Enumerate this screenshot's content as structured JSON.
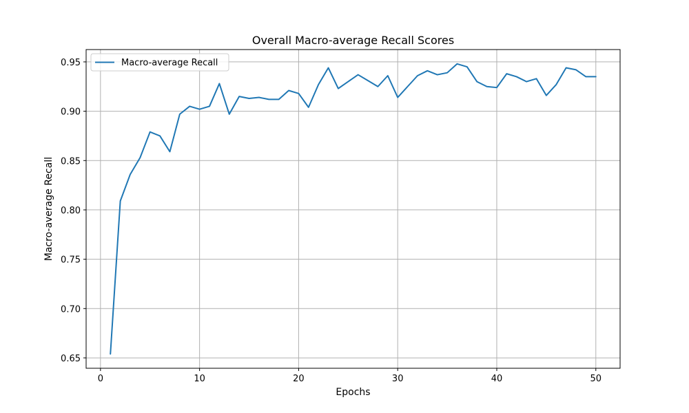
{
  "chart_data": {
    "type": "line",
    "title": "Overall Macro-average Recall Scores",
    "xlabel": "Epochs",
    "ylabel": "Macro-average Recall",
    "xlim": [
      -1.45,
      52.45
    ],
    "ylim": [
      0.6395,
      0.9625
    ],
    "xticks": [
      0,
      10,
      20,
      30,
      40,
      50
    ],
    "yticks": [
      0.65,
      0.7,
      0.75,
      0.8,
      0.85,
      0.9,
      0.95
    ],
    "ytick_format_decimals": 2,
    "grid": true,
    "legend_position": "upper-left",
    "series": [
      {
        "name": "Macro-average Recall",
        "color": "#1f77b4",
        "x": [
          1,
          2,
          3,
          4,
          5,
          6,
          7,
          8,
          9,
          10,
          11,
          12,
          13,
          14,
          15,
          16,
          17,
          18,
          19,
          20,
          21,
          22,
          23,
          24,
          25,
          26,
          27,
          28,
          29,
          30,
          31,
          32,
          33,
          34,
          35,
          36,
          37,
          38,
          39,
          40,
          41,
          42,
          43,
          44,
          45,
          46,
          47,
          48,
          49,
          50
        ],
        "y": [
          0.654,
          0.809,
          0.836,
          0.853,
          0.879,
          0.875,
          0.859,
          0.897,
          0.905,
          0.902,
          0.905,
          0.928,
          0.897,
          0.915,
          0.913,
          0.914,
          0.912,
          0.912,
          0.921,
          0.918,
          0.904,
          0.927,
          0.944,
          0.923,
          0.93,
          0.937,
          0.931,
          0.925,
          0.936,
          0.914,
          0.925,
          0.936,
          0.941,
          0.937,
          0.939,
          0.948,
          0.945,
          0.93,
          0.925,
          0.924,
          0.938,
          0.935,
          0.93,
          0.933,
          0.916,
          0.927,
          0.944,
          0.942,
          0.935,
          0.935
        ]
      }
    ]
  }
}
